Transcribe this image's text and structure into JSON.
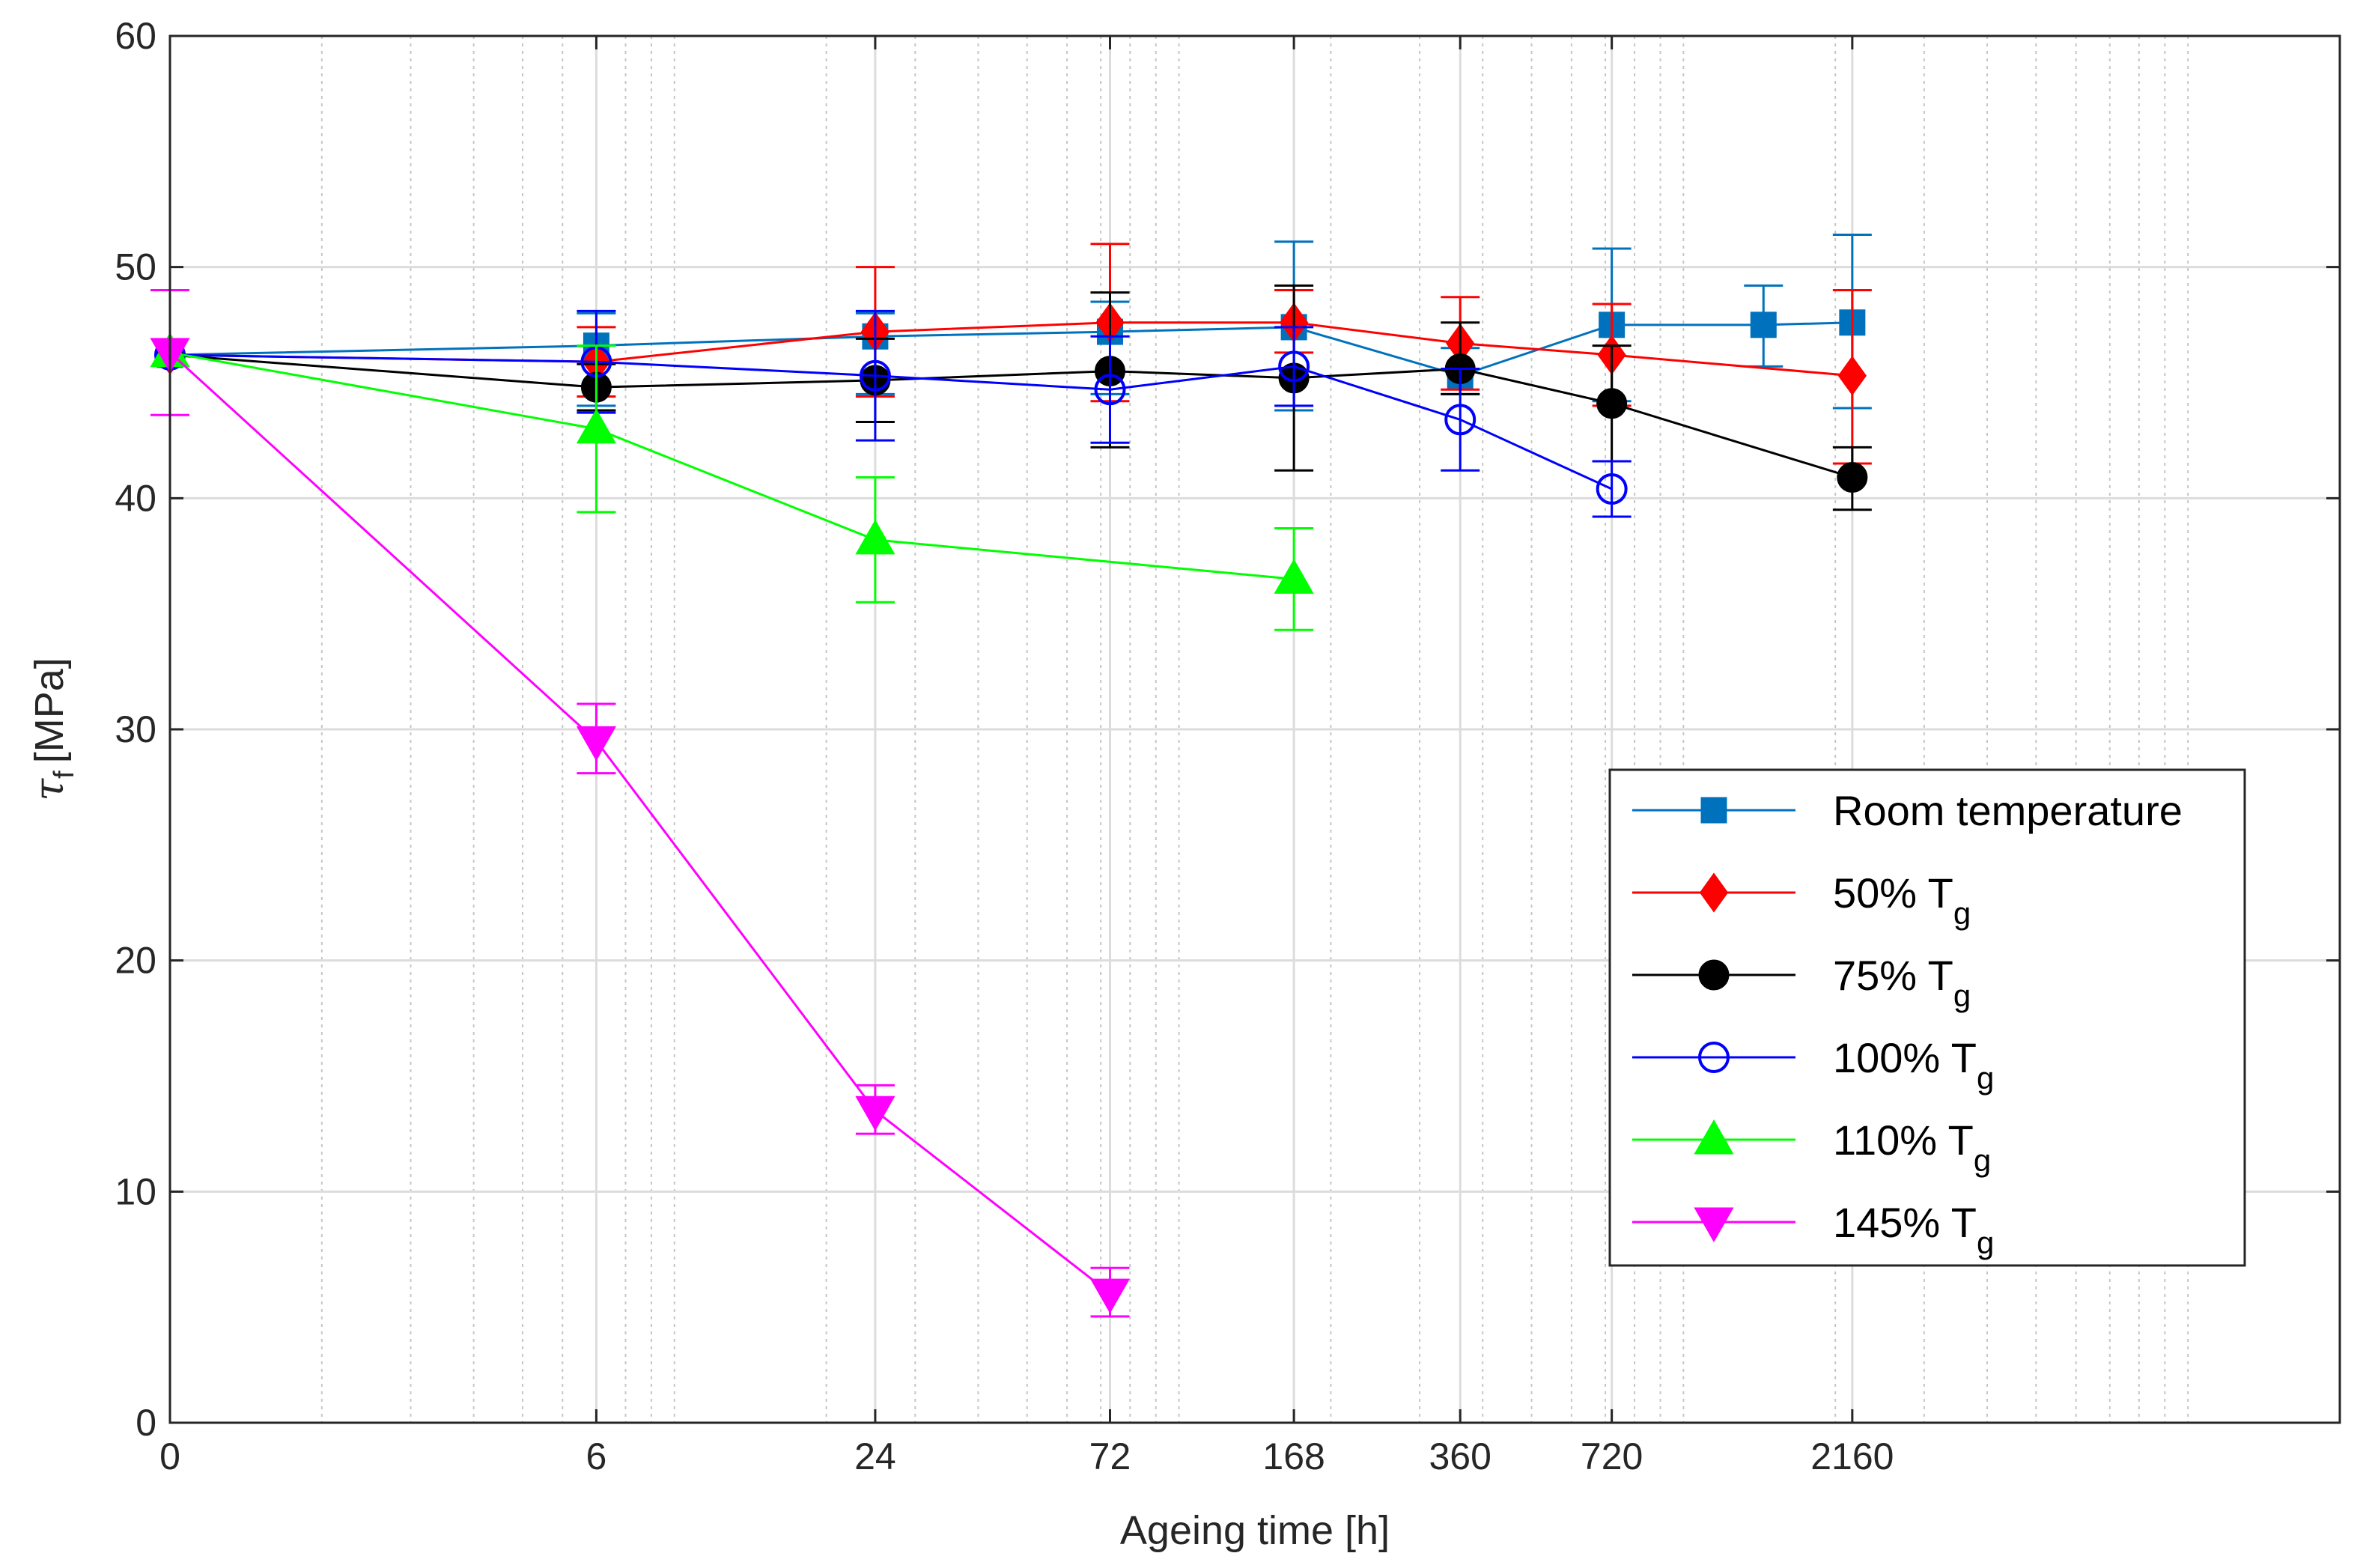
{
  "chart_data": {
    "type": "line",
    "title": "",
    "xlabel": "Ageing time [h]",
    "ylabel": "τf [MPa]",
    "ylabel_symbol": "τ",
    "ylabel_subscript": "f",
    "ylabel_unit": "[MPa]",
    "xscale": "log(t+1)",
    "xlim": [
      0,
      20000
    ],
    "ylim": [
      0,
      60
    ],
    "y_ticks": [
      0,
      10,
      20,
      30,
      40,
      50,
      60
    ],
    "x_ticks": [
      0,
      6,
      24,
      72,
      168,
      360,
      720,
      2160
    ],
    "x_tick_labels": [
      "0",
      "6",
      "24",
      "72",
      "168",
      "360",
      "720",
      "2160"
    ],
    "grid": true,
    "legend_position": "right",
    "series": [
      {
        "name": "Room temperature",
        "name_main": "Room temperature",
        "name_sub": "",
        "color": "#0072BD",
        "marker": "square",
        "filled": true,
        "points": [
          {
            "x": 0,
            "y": 46.2,
            "err_low": 46.2,
            "err_high": 46.2
          },
          {
            "x": 6,
            "y": 46.6,
            "err_low": 44.0,
            "err_high": 48.0
          },
          {
            "x": 24,
            "y": 47.0,
            "err_low": 44.5,
            "err_high": 48.0
          },
          {
            "x": 72,
            "y": 47.2,
            "err_low": 44.5,
            "err_high": 48.5
          },
          {
            "x": 168,
            "y": 47.4,
            "err_low": 43.8,
            "err_high": 51.1
          },
          {
            "x": 360,
            "y": 45.3,
            "err_low": 44.5,
            "err_high": 46.5
          },
          {
            "x": 720,
            "y": 47.5,
            "err_low": 44.2,
            "err_high": 50.8
          },
          {
            "x": 1440,
            "y": 47.5,
            "err_low": 45.7,
            "err_high": 49.2
          },
          {
            "x": 2160,
            "y": 47.6,
            "err_low": 43.9,
            "err_high": 51.4
          }
        ]
      },
      {
        "name": "50% Tg",
        "name_main": "50% T",
        "name_sub": "g",
        "color": "#FF0000",
        "marker": "diamond",
        "filled": true,
        "points": [
          {
            "x": 0,
            "y": 46.2,
            "err_low": 46.2,
            "err_high": 46.2
          },
          {
            "x": 6,
            "y": 45.9,
            "err_low": 44.4,
            "err_high": 47.4
          },
          {
            "x": 24,
            "y": 47.2,
            "err_low": 44.4,
            "err_high": 50.0
          },
          {
            "x": 72,
            "y": 47.6,
            "err_low": 44.2,
            "err_high": 51.0
          },
          {
            "x": 168,
            "y": 47.6,
            "err_low": 46.3,
            "err_high": 49.0
          },
          {
            "x": 360,
            "y": 46.7,
            "err_low": 44.7,
            "err_high": 48.7
          },
          {
            "x": 720,
            "y": 46.2,
            "err_low": 44.0,
            "err_high": 48.4
          },
          {
            "x": 2160,
            "y": 45.3,
            "err_low": 41.5,
            "err_high": 49.0
          }
        ]
      },
      {
        "name": "75% Tg",
        "name_main": "75% T",
        "name_sub": "g",
        "color": "#000000",
        "marker": "circle",
        "filled": true,
        "points": [
          {
            "x": 0,
            "y": 46.2,
            "err_low": 46.2,
            "err_high": 46.2
          },
          {
            "x": 6,
            "y": 44.8,
            "err_low": 43.8,
            "err_high": 45.8
          },
          {
            "x": 24,
            "y": 45.1,
            "err_low": 43.3,
            "err_high": 46.9
          },
          {
            "x": 72,
            "y": 45.5,
            "err_low": 42.2,
            "err_high": 48.9
          },
          {
            "x": 168,
            "y": 45.2,
            "err_low": 41.2,
            "err_high": 49.2
          },
          {
            "x": 360,
            "y": 45.6,
            "err_low": 44.5,
            "err_high": 47.6
          },
          {
            "x": 720,
            "y": 44.1,
            "err_low": 41.6,
            "err_high": 46.6
          },
          {
            "x": 2160,
            "y": 40.9,
            "err_low": 39.5,
            "err_high": 42.2
          }
        ]
      },
      {
        "name": "100% Tg",
        "name_main": "100% T",
        "name_sub": "g",
        "color": "#0000FF",
        "marker": "circle",
        "filled": false,
        "points": [
          {
            "x": 0,
            "y": 46.2,
            "err_low": 46.2,
            "err_high": 46.2
          },
          {
            "x": 6,
            "y": 45.9,
            "err_low": 43.7,
            "err_high": 48.1
          },
          {
            "x": 24,
            "y": 45.3,
            "err_low": 42.5,
            "err_high": 48.1
          },
          {
            "x": 72,
            "y": 44.7,
            "err_low": 42.4,
            "err_high": 47.0
          },
          {
            "x": 168,
            "y": 45.7,
            "err_low": 44.0,
            "err_high": 47.4
          },
          {
            "x": 360,
            "y": 43.4,
            "err_low": 41.2,
            "err_high": 45.6
          },
          {
            "x": 720,
            "y": 40.4,
            "err_low": 39.2,
            "err_high": 41.6
          }
        ]
      },
      {
        "name": "110% Tg",
        "name_main": "110% T",
        "name_sub": "g",
        "color": "#00FF00",
        "marker": "triangle-up",
        "filled": true,
        "points": [
          {
            "x": 0,
            "y": 46.3,
            "err_low": 46.3,
            "err_high": 46.3
          },
          {
            "x": 6,
            "y": 43.0,
            "err_low": 39.4,
            "err_high": 46.6
          },
          {
            "x": 24,
            "y": 38.2,
            "err_low": 35.5,
            "err_high": 40.9
          },
          {
            "x": 168,
            "y": 36.5,
            "err_low": 34.3,
            "err_high": 38.7
          }
        ]
      },
      {
        "name": "145% Tg",
        "name_main": "145% T",
        "name_sub": "g",
        "color": "#FF00FF",
        "marker": "triangle-down",
        "filled": true,
        "points": [
          {
            "x": 0,
            "y": 46.3,
            "err_low": 43.6,
            "err_high": 49.0
          },
          {
            "x": 6,
            "y": 29.5,
            "err_low": 28.1,
            "err_high": 31.1
          },
          {
            "x": 24,
            "y": 13.5,
            "err_low": 12.5,
            "err_high": 14.6
          },
          {
            "x": 72,
            "y": 5.6,
            "err_low": 4.6,
            "err_high": 6.7
          }
        ]
      }
    ]
  }
}
